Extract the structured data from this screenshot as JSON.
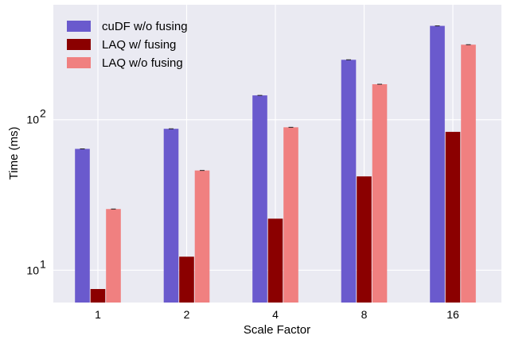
{
  "chart_data": {
    "type": "bar",
    "yscale": "log",
    "categories": [
      "1",
      "2",
      "4",
      "8",
      "16"
    ],
    "series": [
      {
        "name": "cuDF w/o fusing",
        "color": "#6a5acd",
        "values": [
          64,
          87,
          145,
          250,
          420
        ]
      },
      {
        "name": "LAQ w/ fusing",
        "color": "#8b0000",
        "values": [
          7.5,
          12.3,
          22,
          42,
          83
        ]
      },
      {
        "name": "LAQ w/o fusing",
        "color": "#f08080",
        "values": [
          25.5,
          46,
          89,
          172,
          315
        ]
      }
    ],
    "xlabel": "Scale Factor",
    "ylabel": "Time (ms)",
    "ylim": [
      6.1,
      580
    ],
    "yticks": [
      {
        "value": 10,
        "base": "10",
        "exp": "1"
      },
      {
        "value": 100,
        "base": "10",
        "exp": "2"
      }
    ],
    "legend_position": "top-left",
    "grid": true
  }
}
